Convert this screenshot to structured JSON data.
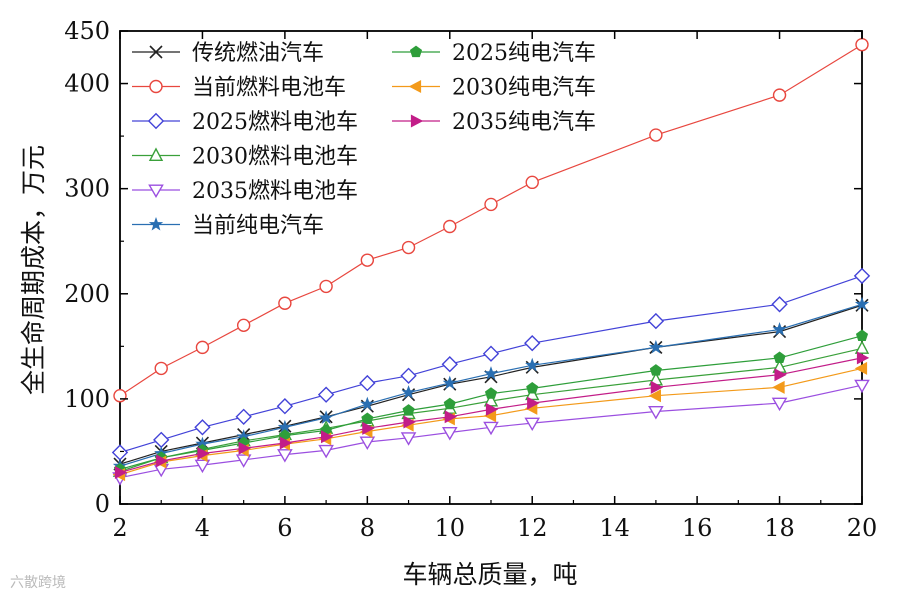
{
  "watermark": "六散跨境",
  "chart_data": {
    "type": "line",
    "xlabel": "车辆总质量，吨",
    "ylabel": "全生命周期成本，万元",
    "xlim": [
      2,
      20
    ],
    "ylim": [
      0,
      450
    ],
    "xticks": [
      2,
      4,
      6,
      8,
      10,
      12,
      14,
      16,
      18,
      20
    ],
    "yticks": [
      0,
      100,
      200,
      300,
      400,
      450
    ],
    "legend_placement": "top-left, two columns",
    "grid": false,
    "x": [
      2,
      3,
      4,
      5,
      6,
      7,
      8,
      9,
      10,
      11,
      12,
      15,
      18,
      20
    ],
    "series": [
      {
        "name": "传统燃油汽车",
        "marker": "x",
        "color": "#222222",
        "values": [
          38,
          50,
          58,
          66,
          74,
          83,
          93,
          104,
          114,
          121,
          130,
          149,
          164,
          189
        ]
      },
      {
        "name": "当前燃料电池车",
        "marker": "circle-open",
        "color": "#e8473f",
        "values": [
          103,
          129,
          149,
          170,
          191,
          207,
          232,
          244,
          264,
          285,
          306,
          351,
          389,
          437
        ]
      },
      {
        "name": "2025燃料电池车",
        "marker": "diamond-open",
        "color": "#4343d8",
        "values": [
          49,
          61,
          73,
          83,
          93,
          104,
          115,
          122,
          133,
          143,
          153,
          174,
          190,
          217
        ]
      },
      {
        "name": "2030燃料电池车",
        "marker": "triangle-up-open",
        "color": "#3aa03a",
        "values": [
          31,
          44,
          52,
          60,
          66,
          72,
          79,
          86,
          91,
          98,
          104,
          118,
          130,
          148
        ]
      },
      {
        "name": "2035燃料电池车",
        "marker": "triangle-down-open",
        "color": "#9b4fe0",
        "values": [
          25,
          33,
          37,
          42,
          47,
          51,
          59,
          63,
          68,
          73,
          77,
          88,
          96,
          113
        ]
      },
      {
        "name": "当前纯电汽车",
        "marker": "star",
        "color": "#2a6fb2",
        "values": [
          36,
          48,
          57,
          64,
          73,
          82,
          95,
          106,
          115,
          124,
          132,
          149,
          166,
          190
        ]
      },
      {
        "name": "2025纯电汽车",
        "marker": "pentagon",
        "color": "#2e9e3a",
        "values": [
          33,
          44,
          51,
          58,
          65,
          70,
          81,
          89,
          95,
          105,
          110,
          127,
          139,
          160
        ]
      },
      {
        "name": "2030纯电汽车",
        "marker": "triangle-left",
        "color": "#f39a1a",
        "values": [
          28,
          40,
          46,
          51,
          57,
          62,
          69,
          75,
          81,
          84,
          91,
          103,
          111,
          129
        ]
      },
      {
        "name": "2035纯电汽车",
        "marker": "triangle-right",
        "color": "#c21d88",
        "values": [
          30,
          41,
          48,
          53,
          58,
          64,
          72,
          78,
          83,
          90,
          96,
          111,
          123,
          139
        ]
      }
    ]
  }
}
